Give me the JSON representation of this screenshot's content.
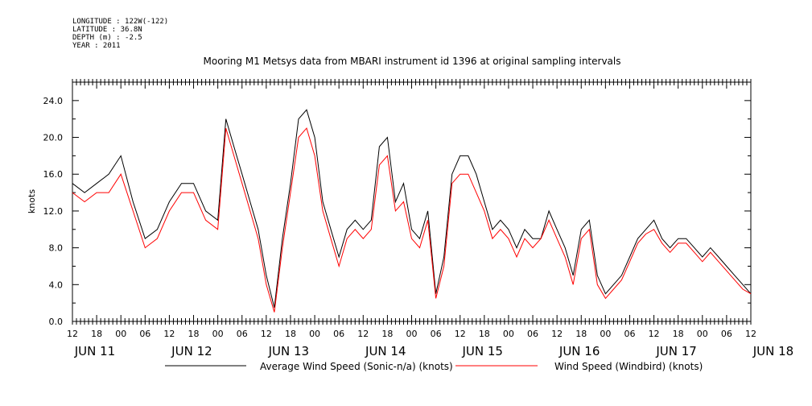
{
  "meta": {
    "longitude": "LONGITUDE : 122W(-122)",
    "latitude": "LATITUDE : 36.8N",
    "depth": "DEPTH (m) : -2.5",
    "year": "YEAR : 2011"
  },
  "colors": {
    "series1": "#000000",
    "series2": "#ff0000",
    "axis": "#000000"
  },
  "chart_data": {
    "type": "line",
    "title": "Mooring M1 Metsys data from MBARI instrument id 1396 at original sampling intervals",
    "ylabel": "knots",
    "xlabel": "",
    "ylim": [
      0,
      26
    ],
    "xlim_hours": [
      0,
      168
    ],
    "x_unit": "hours after JUN 11 12:00 (2011)",
    "y_ticks": [
      "0.0",
      "4.0",
      "8.0",
      "12.0",
      "16.0",
      "20.0",
      "24.0"
    ],
    "y_tick_values": [
      0,
      4,
      8,
      12,
      16,
      20,
      24
    ],
    "hour_ticks": [
      "12",
      "18",
      "00",
      "06",
      "12",
      "18",
      "00",
      "06",
      "12",
      "18",
      "00",
      "06",
      "12",
      "18",
      "00",
      "06",
      "12",
      "18",
      "00",
      "06",
      "12",
      "18",
      "00",
      "06",
      "12",
      "18",
      "00",
      "06",
      "12"
    ],
    "date_labels": [
      {
        "text": "JUN 11",
        "hour": 0
      },
      {
        "text": "JUN 12",
        "hour": 24
      },
      {
        "text": "JUN 13",
        "hour": 48
      },
      {
        "text": "JUN 14",
        "hour": 72
      },
      {
        "text": "JUN 15",
        "hour": 96
      },
      {
        "text": "JUN 16",
        "hour": 120
      },
      {
        "text": "JUN 17",
        "hour": 144
      },
      {
        "text": "JUN 18",
        "hour": 168
      }
    ],
    "x": [
      0,
      3,
      6,
      9,
      12,
      15,
      18,
      21,
      24,
      27,
      30,
      33,
      36,
      38,
      40,
      42,
      44,
      46,
      48,
      50,
      52,
      54,
      56,
      58,
      60,
      62,
      64,
      66,
      68,
      70,
      72,
      74,
      76,
      78,
      80,
      82,
      84,
      86,
      88,
      90,
      92,
      94,
      96,
      98,
      100,
      102,
      104,
      106,
      108,
      110,
      112,
      114,
      116,
      118,
      120,
      122,
      124,
      126,
      128,
      130,
      132,
      134,
      136,
      138,
      140,
      142,
      144,
      146,
      148,
      150,
      152,
      154,
      156,
      158,
      160,
      162,
      164,
      166,
      168
    ],
    "series": [
      {
        "name": "Average Wind Speed (Sonic-n/a) (knots)",
        "color": "#000000",
        "values": [
          15,
          14,
          15,
          16,
          18,
          13,
          9,
          10,
          13,
          15,
          15,
          12,
          11,
          22,
          19,
          16,
          13,
          10,
          5,
          1.5,
          9,
          15,
          22,
          23,
          20,
          13,
          10,
          7,
          10,
          11,
          10,
          11,
          19,
          20,
          13,
          15,
          10,
          9,
          12,
          3,
          7,
          16,
          18,
          18,
          16,
          13,
          10,
          11,
          10,
          8,
          10,
          9,
          9,
          12,
          10,
          8,
          5,
          10,
          11,
          5,
          3,
          4,
          5,
          7,
          9,
          10,
          11,
          9,
          8,
          9,
          9,
          8,
          7,
          8,
          7,
          6,
          5,
          4,
          3
        ]
      },
      {
        "name": "Wind Speed (Windbird) (knots)",
        "color": "#ff0000",
        "values": [
          14,
          13,
          14,
          14,
          16,
          12,
          8,
          9,
          12,
          14,
          14,
          11,
          10,
          21,
          18,
          15,
          12,
          9,
          4,
          1,
          8,
          14,
          20,
          21,
          18,
          12,
          9,
          6,
          9,
          10,
          9,
          10,
          17,
          18,
          12,
          13,
          9,
          8,
          11,
          2.5,
          6,
          15,
          16,
          16,
          14,
          12,
          9,
          10,
          9,
          7,
          9,
          8,
          9,
          11,
          9,
          7,
          4,
          9,
          10,
          4,
          2.5,
          3.5,
          4.5,
          6.5,
          8.5,
          9.5,
          10,
          8.5,
          7.5,
          8.5,
          8.5,
          7.5,
          6.5,
          7.5,
          6.5,
          5.5,
          4.5,
          3.5,
          3
        ]
      }
    ],
    "legend_position": "bottom"
  }
}
